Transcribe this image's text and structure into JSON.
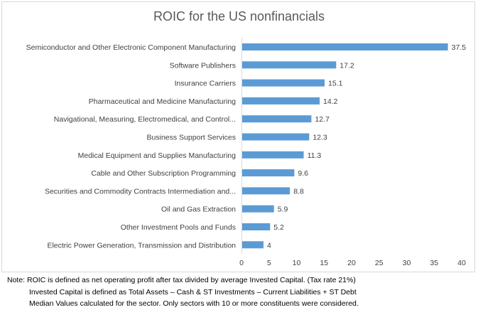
{
  "chart_data": {
    "type": "bar",
    "orientation": "horizontal",
    "title": "ROIC for the US nonfinancials",
    "categories": [
      "Semiconductor and Other Electronic Component Manufacturing",
      "Software Publishers",
      "Insurance Carriers",
      "Pharmaceutical and Medicine Manufacturing",
      "Navigational, Measuring, Electromedical, and Control...",
      "Business Support Services",
      "Medical Equipment and Supplies Manufacturing",
      "Cable and Other Subscription Programming",
      "Securities and Commodity Contracts Intermediation and...",
      "Oil and Gas Extraction",
      "Other Investment Pools and Funds",
      "Electric Power Generation, Transmission and Distribution"
    ],
    "values": [
      37.5,
      17.2,
      15.1,
      14.2,
      12.7,
      12.3,
      11.3,
      9.6,
      8.8,
      5.9,
      5.2,
      4
    ],
    "value_labels": [
      "37.5",
      "17.2",
      "15.1",
      "14.2",
      "12.7",
      "12.3",
      "11.3",
      "9.6",
      "8.8",
      "5.9",
      "5.2",
      "4"
    ],
    "xlim": [
      0,
      40
    ],
    "x_ticks": [
      0,
      5,
      10,
      15,
      20,
      25,
      30,
      35,
      40
    ],
    "grid": false,
    "legend": "none",
    "bar_color": "#5b9bd5"
  },
  "notes": [
    "Note:  ROIC is defined as net operating profit after tax divided by average Invested Capital. (Tax rate 21%)",
    "Invested Capital is defined as Total Assets – Cash & ST Investments – Current Liabilities + ST Debt",
    "Median Values calculated for the sector.  Only sectors with 10 or more constituents were considered."
  ]
}
